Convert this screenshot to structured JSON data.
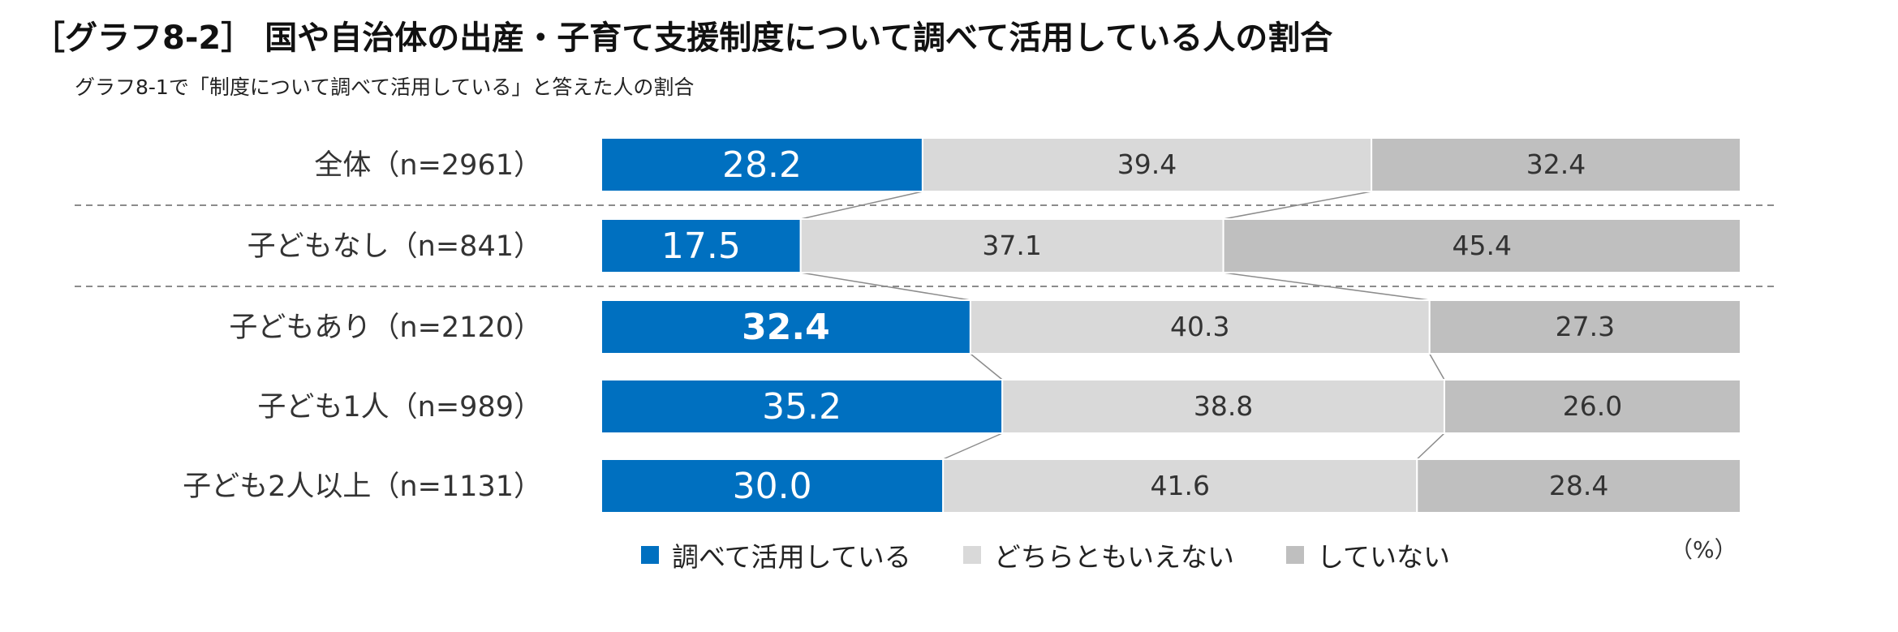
{
  "title": "［グラフ8-2］ 国や自治体の出産・子育て支援制度について調べて活用している人の割合",
  "subtitle": "グラフ8-1で「制度について調べて活用している」と答えた人の割合",
  "unit_label": "（%）",
  "colors": {
    "used": "#0070C0",
    "neither": "#D9D9D9",
    "not": "#BFBFBF"
  },
  "chart_data": {
    "type": "bar",
    "stacked": true,
    "orientation": "horizontal",
    "percent": true,
    "categories": [
      "全体（n=2961）",
      "子どもなし（n=841）",
      "子どもあり（n=2120）",
      "子ども1人（n=989）",
      "子ども2人以上（n=1131）"
    ],
    "series": [
      {
        "name": "調べて活用している",
        "values": [
          28.2,
          17.5,
          32.4,
          35.2,
          30.0
        ]
      },
      {
        "name": "どちらともいえない",
        "values": [
          39.4,
          37.1,
          40.3,
          38.8,
          41.6
        ]
      },
      {
        "name": "していない",
        "values": [
          32.4,
          45.4,
          27.3,
          26.0,
          28.4
        ]
      }
    ],
    "value_labels": [
      [
        "28.2",
        "39.4",
        "32.4"
      ],
      [
        "17.5",
        "37.1",
        "45.4"
      ],
      [
        "32.4",
        "40.3",
        "27.3"
      ],
      [
        "35.2",
        "38.8",
        "26.0"
      ],
      [
        "30.0",
        "41.6",
        "28.4"
      ]
    ],
    "highlight_label": {
      "row": 2,
      "series": 0
    },
    "xlim": [
      0,
      100
    ],
    "legend_position": "bottom",
    "grid": false,
    "separators_after_rows": [
      0,
      1
    ]
  }
}
